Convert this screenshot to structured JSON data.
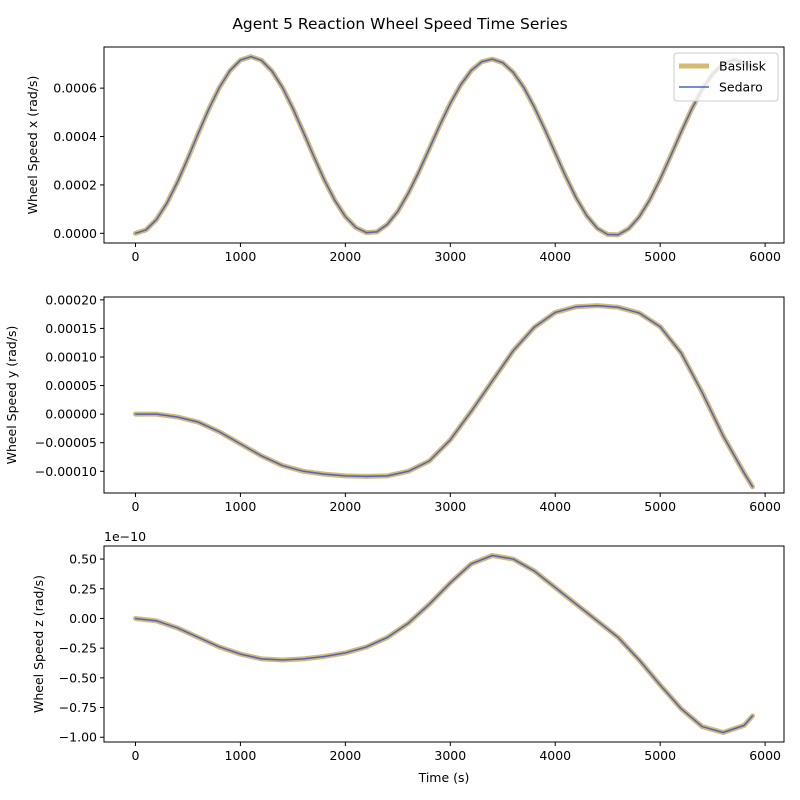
{
  "title": "Agent 5 Reaction Wheel Speed Time Series",
  "colors": {
    "basilisk": "#d4ba73",
    "sedaro": "#4a64c8"
  },
  "chart_data": [
    {
      "type": "line",
      "ylabel": "Wheel Speed x (rad/s)",
      "xlabel": "",
      "offset_text": "",
      "xlim": [
        -300,
        6180
      ],
      "ylim": [
        -4e-05,
        0.00077
      ],
      "xticks": [
        0,
        1000,
        2000,
        3000,
        4000,
        5000,
        6000
      ],
      "xtick_labels": [
        "0",
        "1000",
        "2000",
        "3000",
        "4000",
        "5000",
        "6000"
      ],
      "yticks": [
        0,
        0.0002,
        0.0004,
        0.0006
      ],
      "ytick_labels": [
        "0.0000",
        "0.0002",
        "0.0004",
        "0.0006"
      ],
      "grid": false,
      "legend": {
        "location": "upper right",
        "entries": [
          "Basilisk",
          "Sedaro"
        ]
      },
      "series": [
        {
          "name": "Basilisk",
          "x": [
            0,
            100,
            200,
            300,
            400,
            500,
            600,
            700,
            800,
            900,
            1000,
            1100,
            1200,
            1300,
            1400,
            1500,
            1600,
            1700,
            1800,
            1900,
            2000,
            2100,
            2200,
            2300,
            2400,
            2500,
            2600,
            2700,
            2800,
            2900,
            3000,
            3100,
            3200,
            3300,
            3400,
            3500,
            3600,
            3700,
            3800,
            3900,
            4000,
            4100,
            4200,
            4300,
            4400,
            4500,
            4600,
            4700,
            4800,
            4900,
            5000,
            5100,
            5200,
            5300,
            5400,
            5500,
            5600,
            5700,
            5800,
            5880
          ],
          "y": [
            0.0,
            1.4e-05,
            5.7e-05,
            0.000125,
            0.000212,
            0.000311,
            0.000415,
            0.000515,
            0.000603,
            0.000672,
            0.000716,
            0.00073,
            0.000715,
            0.000671,
            0.000603,
            0.000516,
            0.000418,
            0.000317,
            0.00022,
            0.000136,
            6.9e-05,
            2.4e-05,
            3e-06,
            6e-06,
            3.7e-05,
            9.1e-05,
            0.000166,
            0.000254,
            0.00035,
            0.000447,
            0.000537,
            0.000614,
            0.000673,
            0.000709,
            0.00072,
            0.000705,
            0.000665,
            0.000603,
            0.000522,
            0.00043,
            0.000332,
            0.000235,
            0.000146,
            7.3e-05,
            2.1e-05,
            -5e-06,
            -6e-06,
            1.9e-05,
            6.8e-05,
            0.000138,
            0.000224,
            0.00032,
            0.000419,
            0.000513,
            0.000595,
            0.000658,
            0.0007,
            0.000717,
            0.000705,
            0.000685
          ]
        },
        {
          "name": "Sedaro",
          "x": [
            0,
            100,
            200,
            300,
            400,
            500,
            600,
            700,
            800,
            900,
            1000,
            1100,
            1200,
            1300,
            1400,
            1500,
            1600,
            1700,
            1800,
            1900,
            2000,
            2100,
            2200,
            2300,
            2400,
            2500,
            2600,
            2700,
            2800,
            2900,
            3000,
            3100,
            3200,
            3300,
            3400,
            3500,
            3600,
            3700,
            3800,
            3900,
            4000,
            4100,
            4200,
            4300,
            4400,
            4500,
            4600,
            4700,
            4800,
            4900,
            5000,
            5100,
            5200,
            5300,
            5400,
            5500,
            5600,
            5700,
            5800,
            5880
          ],
          "y": [
            0.0,
            1.4e-05,
            5.7e-05,
            0.000125,
            0.000212,
            0.000311,
            0.000415,
            0.000515,
            0.000603,
            0.000672,
            0.000716,
            0.00073,
            0.000715,
            0.000671,
            0.000603,
            0.000516,
            0.000418,
            0.000317,
            0.00022,
            0.000136,
            6.9e-05,
            2.4e-05,
            3e-06,
            6e-06,
            3.7e-05,
            9.1e-05,
            0.000166,
            0.000254,
            0.00035,
            0.000447,
            0.000537,
            0.000614,
            0.000673,
            0.000709,
            0.00072,
            0.000705,
            0.000665,
            0.000603,
            0.000522,
            0.00043,
            0.000332,
            0.000235,
            0.000146,
            7.3e-05,
            2.1e-05,
            -5e-06,
            -6e-06,
            1.9e-05,
            6.8e-05,
            0.000138,
            0.000224,
            0.00032,
            0.000419,
            0.000513,
            0.000595,
            0.000658,
            0.0007,
            0.000717,
            0.000705,
            0.000685
          ]
        }
      ]
    },
    {
      "type": "line",
      "ylabel": "Wheel Speed y (rad/s)",
      "xlabel": "",
      "offset_text": "",
      "xlim": [
        -300,
        6180
      ],
      "ylim": [
        -0.000138,
        0.000205
      ],
      "xticks": [
        0,
        1000,
        2000,
        3000,
        4000,
        5000,
        6000
      ],
      "xtick_labels": [
        "0",
        "1000",
        "2000",
        "3000",
        "4000",
        "5000",
        "6000"
      ],
      "yticks": [
        -0.0001,
        -5e-05,
        0,
        5e-05,
        0.0001,
        0.00015,
        0.0002
      ],
      "ytick_labels": [
        "−0.00010",
        "−0.00005",
        "0.00000",
        "0.00005",
        "0.00010",
        "0.00015",
        "0.00020"
      ],
      "grid": false,
      "series": [
        {
          "name": "Basilisk",
          "x": [
            0,
            200,
            400,
            600,
            800,
            1000,
            1200,
            1400,
            1600,
            1800,
            2000,
            2200,
            2400,
            2600,
            2800,
            3000,
            3200,
            3400,
            3600,
            3800,
            4000,
            4200,
            4400,
            4600,
            4800,
            5000,
            5200,
            5400,
            5600,
            5800,
            5880
          ],
          "y": [
            0.0,
            0.0,
            -5e-06,
            -1.4e-05,
            -3.1e-05,
            -5.2e-05,
            -7.3e-05,
            -9e-05,
            -0.0001,
            -0.000105,
            -0.000108,
            -0.000109,
            -0.000108,
            -0.0001,
            -8.2e-05,
            -4.5e-05,
            5e-06,
            5.8e-05,
            0.000111,
            0.000152,
            0.000178,
            0.000188,
            0.00019,
            0.000187,
            0.000177,
            0.000153,
            0.000107,
            3.8e-05,
            -3.8e-05,
            -0.000103,
            -0.000127
          ]
        },
        {
          "name": "Sedaro",
          "x": [
            0,
            200,
            400,
            600,
            800,
            1000,
            1200,
            1400,
            1600,
            1800,
            2000,
            2200,
            2400,
            2600,
            2800,
            3000,
            3200,
            3400,
            3600,
            3800,
            4000,
            4200,
            4400,
            4600,
            4800,
            5000,
            5200,
            5400,
            5600,
            5800,
            5880
          ],
          "y": [
            0.0,
            0.0,
            -5e-06,
            -1.4e-05,
            -3.1e-05,
            -5.2e-05,
            -7.3e-05,
            -9e-05,
            -0.0001,
            -0.000105,
            -0.000108,
            -0.000109,
            -0.000108,
            -0.0001,
            -8.2e-05,
            -4.5e-05,
            5e-06,
            5.8e-05,
            0.000111,
            0.000152,
            0.000178,
            0.000188,
            0.00019,
            0.000187,
            0.000177,
            0.000153,
            0.000107,
            3.8e-05,
            -3.8e-05,
            -0.000103,
            -0.000127
          ]
        }
      ]
    },
    {
      "type": "line",
      "ylabel": "Wheel Speed z (rad/s)",
      "xlabel": "Time (s)",
      "offset_text": "1e−10",
      "y_scale_factor": 1e-10,
      "xlim": [
        -300,
        6180
      ],
      "ylim": [
        -1.04,
        0.61
      ],
      "xticks": [
        0,
        1000,
        2000,
        3000,
        4000,
        5000,
        6000
      ],
      "xtick_labels": [
        "0",
        "1000",
        "2000",
        "3000",
        "4000",
        "5000",
        "6000"
      ],
      "yticks": [
        -1.0,
        -0.75,
        -0.5,
        -0.25,
        0,
        0.25,
        0.5
      ],
      "ytick_labels": [
        "−1.00",
        "−0.75",
        "−0.50",
        "−0.25",
        "0.00",
        "0.25",
        "0.50"
      ],
      "grid": false,
      "series": [
        {
          "name": "Basilisk",
          "x": [
            0,
            200,
            400,
            600,
            800,
            1000,
            1200,
            1400,
            1600,
            1800,
            2000,
            2200,
            2400,
            2600,
            2800,
            3000,
            3200,
            3400,
            3600,
            3800,
            4000,
            4200,
            4400,
            4600,
            4800,
            5000,
            5200,
            5400,
            5600,
            5800,
            5880
          ],
          "y": [
            0.0,
            -0.02,
            -0.08,
            -0.16,
            -0.24,
            -0.3,
            -0.34,
            -0.35,
            -0.34,
            -0.32,
            -0.29,
            -0.24,
            -0.16,
            -0.04,
            0.12,
            0.3,
            0.46,
            0.53,
            0.5,
            0.4,
            0.26,
            0.12,
            -0.02,
            -0.16,
            -0.35,
            -0.56,
            -0.76,
            -0.91,
            -0.96,
            -0.9,
            -0.82
          ]
        },
        {
          "name": "Sedaro",
          "x": [
            0,
            200,
            400,
            600,
            800,
            1000,
            1200,
            1400,
            1600,
            1800,
            2000,
            2200,
            2400,
            2600,
            2800,
            3000,
            3200,
            3400,
            3600,
            3800,
            4000,
            4200,
            4400,
            4600,
            4800,
            5000,
            5200,
            5400,
            5600,
            5800,
            5880
          ],
          "y": [
            0.0,
            -0.02,
            -0.08,
            -0.16,
            -0.24,
            -0.3,
            -0.34,
            -0.35,
            -0.34,
            -0.32,
            -0.29,
            -0.24,
            -0.16,
            -0.04,
            0.12,
            0.3,
            0.46,
            0.53,
            0.5,
            0.4,
            0.26,
            0.12,
            -0.02,
            -0.16,
            -0.35,
            -0.56,
            -0.76,
            -0.91,
            -0.96,
            -0.9,
            -0.82
          ]
        }
      ]
    }
  ]
}
